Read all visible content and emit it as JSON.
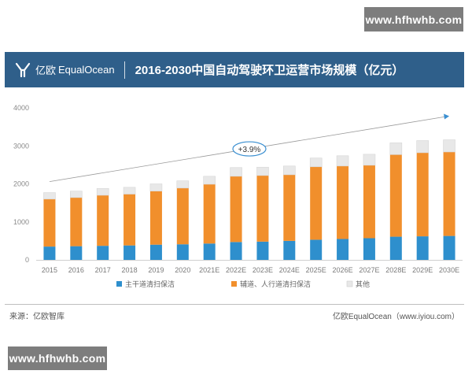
{
  "watermark": {
    "top_text": "www.hfhwhb.com",
    "bottom_text": "www.hfhwhb.com"
  },
  "header": {
    "logo_icon": "equalocean-logo-icon",
    "logo_cn": "亿欧",
    "logo_en": "EqualOcean",
    "title": "2016-2030中国自动驾驶环卫运营市场规模（亿元）",
    "background": "#2f5f8a"
  },
  "footer": {
    "source_left": "来源：亿欧智库",
    "source_right": "亿欧EqualOcean（www.iyiou.com）"
  },
  "chart_data": {
    "type": "bar",
    "stacked": true,
    "title": "2016-2030中国自动驾驶环卫运营市场规模（亿元）",
    "xlabel": "",
    "ylabel": "",
    "ylim": [
      0,
      4000
    ],
    "yticks": [
      0,
      1000,
      2000,
      3000,
      4000
    ],
    "grid": false,
    "legend_position": "bottom",
    "categories": [
      "2015",
      "2016",
      "2017",
      "2018",
      "2019",
      "2020",
      "2021E",
      "2022E",
      "2023E",
      "2024E",
      "2025E",
      "2026E",
      "2027E",
      "2028E",
      "2029E",
      "2030E"
    ],
    "series": [
      {
        "name": "主干道清扫保洁",
        "color": "#2e8fcd",
        "values": [
          350,
          360,
          370,
          380,
          400,
          410,
          430,
          470,
          480,
          500,
          530,
          550,
          570,
          610,
          620,
          630
        ]
      },
      {
        "name": "辅道、人行道清扫保洁",
        "color": "#f18f2c",
        "values": [
          1250,
          1280,
          1330,
          1350,
          1410,
          1480,
          1560,
          1730,
          1740,
          1740,
          1920,
          1920,
          1920,
          2160,
          2200,
          2210
        ]
      },
      {
        "name": "其他",
        "color": "#e8e8e8",
        "values": [
          170,
          170,
          180,
          180,
          190,
          190,
          210,
          230,
          220,
          230,
          230,
          270,
          290,
          310,
          320,
          320
        ]
      }
    ],
    "annotation": {
      "text": "+3.9%",
      "type": "trend-arrow",
      "from": "2015",
      "to": "2030E"
    }
  }
}
